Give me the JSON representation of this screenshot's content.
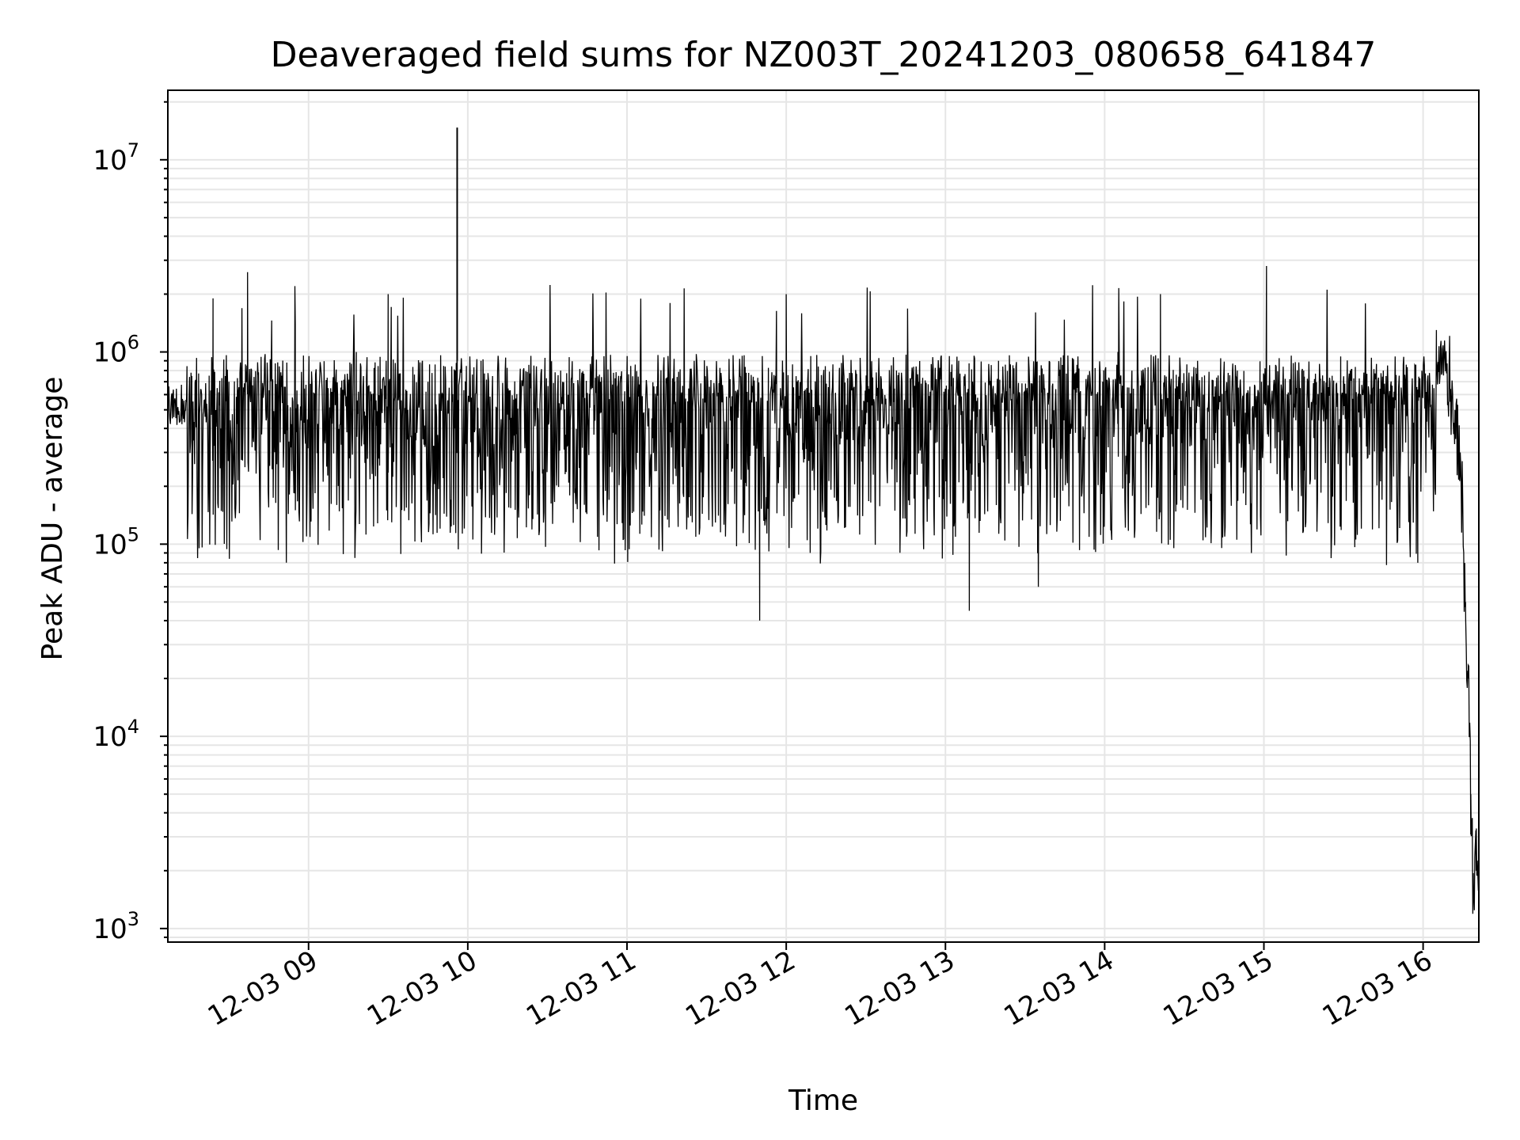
{
  "chart_data": {
    "type": "line",
    "title": "Deaveraged field sums for NZ003T_20241203_080658_641847",
    "xlabel": "Time",
    "ylabel": "Peak ADU - average",
    "y_scale": "log",
    "ylim": [
      850,
      23000000
    ],
    "xlim": [
      "2024-12-03 08:06:58",
      "2024-12-03 16:21:00"
    ],
    "x_ticks": [
      {
        "value": "2024-12-03 09:00",
        "label": "12-03 09"
      },
      {
        "value": "2024-12-03 10:00",
        "label": "12-03 10"
      },
      {
        "value": "2024-12-03 11:00",
        "label": "12-03 11"
      },
      {
        "value": "2024-12-03 12:00",
        "label": "12-03 12"
      },
      {
        "value": "2024-12-03 13:00",
        "label": "12-03 13"
      },
      {
        "value": "2024-12-03 14:00",
        "label": "12-03 14"
      },
      {
        "value": "2024-12-03 15:00",
        "label": "12-03 15"
      },
      {
        "value": "2024-12-03 16:00",
        "label": "12-03 16"
      }
    ],
    "y_ticks": [
      {
        "value": 1000,
        "base": "10",
        "exp": "3"
      },
      {
        "value": 10000,
        "base": "10",
        "exp": "4"
      },
      {
        "value": 100000,
        "base": "10",
        "exp": "5"
      },
      {
        "value": 1000000,
        "base": "10",
        "exp": "6"
      },
      {
        "value": 10000000,
        "base": "10",
        "exp": "7"
      }
    ],
    "grid": true,
    "line_color": "#000000",
    "grid_color": "#e6e6e6",
    "series": [
      {
        "x": [
          "2024-12-03 08:07",
          "2024-12-03 08:16",
          "2024-12-03 08:24",
          "2024-12-03 08:27",
          "2024-12-03 08:30",
          "2024-12-03 08:37",
          "2024-12-03 08:45",
          "2024-12-03 08:55",
          "2024-12-03 09:10",
          "2024-12-03 09:18",
          "2024-12-03 09:30",
          "2024-12-03 09:45",
          "2024-12-03 09:56",
          "2024-12-03 10:05",
          "2024-12-03 10:20",
          "2024-12-03 10:35",
          "2024-12-03 10:50",
          "2024-12-03 11:05",
          "2024-12-03 11:18",
          "2024-12-03 11:30",
          "2024-12-03 11:45",
          "2024-12-03 11:50",
          "2024-12-03 12:00",
          "2024-12-03 12:20",
          "2024-12-03 12:35",
          "2024-12-03 12:50",
          "2024-12-03 13:05",
          "2024-12-03 13:09",
          "2024-12-03 13:20",
          "2024-12-03 13:35",
          "2024-12-03 13:50",
          "2024-12-03 14:05",
          "2024-12-03 14:21",
          "2024-12-03 14:35",
          "2024-12-03 14:50",
          "2024-12-03 15:01",
          "2024-12-03 15:15",
          "2024-12-03 15:30",
          "2024-12-03 15:45",
          "2024-12-03 15:58",
          "2024-12-03 16:05",
          "2024-12-03 16:09",
          "2024-12-03 16:12",
          "2024-12-03 16:14",
          "2024-12-03 16:16",
          "2024-12-03 16:17",
          "2024-12-03 16:18",
          "2024-12-03 16:19",
          "2024-12-03 16:20"
        ],
        "y": [
          600000,
          750000,
          1900000,
          400000,
          700000,
          2600000,
          250000,
          1400000,
          700000,
          1000000,
          2000000,
          700000,
          14700000,
          900000,
          500000,
          800000,
          700000,
          900000,
          700000,
          400000,
          200000,
          40000,
          2000000,
          800000,
          800000,
          700000,
          900000,
          45000,
          900000,
          60000,
          800000,
          1000000,
          2000000,
          900000,
          800000,
          2800000,
          800000,
          700000,
          800000,
          80000,
          1300000,
          800000,
          500000,
          300000,
          50000,
          20000,
          5000,
          1500,
          2000
        ]
      }
    ]
  }
}
